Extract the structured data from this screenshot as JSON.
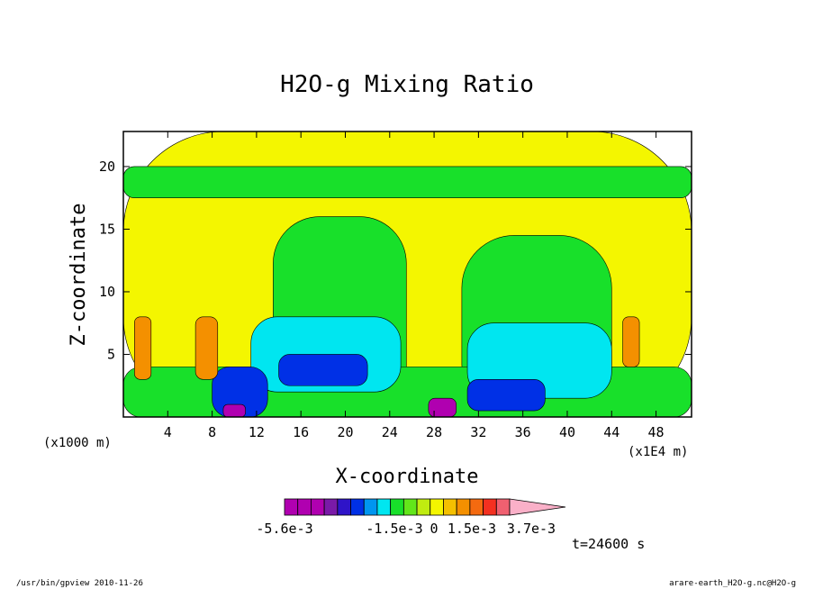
{
  "chart_data": {
    "type": "heatmap",
    "title": "H2O-g Mixing Ratio",
    "xlabel": "X-coordinate",
    "ylabel": "Z-coordinate",
    "x_unit_left": "(x1000 m)",
    "x_unit_right": "(x1E4 m)",
    "xlim": [
      0,
      51.2
    ],
    "ylim": [
      0,
      22.8
    ],
    "x_ticks": [
      4,
      8,
      12,
      16,
      20,
      24,
      28,
      32,
      36,
      40,
      44,
      48
    ],
    "x_tick_labels": [
      "4",
      "8",
      "12",
      "16",
      "20",
      "24",
      "28",
      "32",
      "36",
      "40",
      "44",
      "48"
    ],
    "y_ticks": [
      5,
      10,
      15,
      20
    ],
    "y_tick_labels": [
      "5",
      "10",
      "15",
      "20"
    ],
    "time_label": "t=24600 s",
    "colorbar": {
      "colors": [
        "#b000b0",
        "#b000b0",
        "#b000b0",
        "#7a1aa8",
        "#2f14c8",
        "#0030e6",
        "#0096f0",
        "#00e6f0",
        "#18e02a",
        "#62e61a",
        "#c0ec10",
        "#f4f600",
        "#f4c000",
        "#f49000",
        "#f46a10",
        "#f43020",
        "#f06070",
        "#fab0c8"
      ],
      "tick_labels": [
        "-5.6e-3",
        "-1.5e-3",
        "0",
        "1.5e-3",
        "3.7e-3"
      ]
    },
    "regions": [
      {
        "level": "yellow",
        "color": "#f4f600",
        "x0": 0,
        "x1": 51.2,
        "z0": 0,
        "z1": 22.8
      },
      {
        "level": "green",
        "color": "#18e02a",
        "x0": 13.5,
        "x1": 25.5,
        "z0": 0,
        "z1": 16
      },
      {
        "level": "green",
        "color": "#18e02a",
        "x0": 30.5,
        "x1": 44,
        "z0": 0,
        "z1": 14.5
      },
      {
        "level": "green",
        "color": "#18e02a",
        "x0": 0,
        "x1": 51.2,
        "z0": 17.5,
        "z1": 20
      },
      {
        "level": "green",
        "color": "#18e02a",
        "x0": 0,
        "x1": 51.2,
        "z0": 0,
        "z1": 4
      },
      {
        "level": "cyan",
        "color": "#00e6f0",
        "x0": 11.5,
        "x1": 25,
        "z0": 2,
        "z1": 8
      },
      {
        "level": "cyan",
        "color": "#00e6f0",
        "x0": 31,
        "x1": 44,
        "z0": 1.5,
        "z1": 7.5
      },
      {
        "level": "blue",
        "color": "#0030e6",
        "x0": 14,
        "x1": 22,
        "z0": 2.5,
        "z1": 5
      },
      {
        "level": "blue",
        "color": "#0030e6",
        "x0": 8,
        "x1": 13,
        "z0": 0,
        "z1": 4
      },
      {
        "level": "blue",
        "color": "#0030e6",
        "x0": 31,
        "x1": 38,
        "z0": 0.5,
        "z1": 3
      },
      {
        "level": "orange",
        "color": "#f49000",
        "x0": 1,
        "x1": 2.5,
        "z0": 3,
        "z1": 8
      },
      {
        "level": "orange",
        "color": "#f49000",
        "x0": 6.5,
        "x1": 8.5,
        "z0": 3,
        "z1": 8
      },
      {
        "level": "orange",
        "color": "#f49000",
        "x0": 45,
        "x1": 46.5,
        "z0": 4,
        "z1": 8
      },
      {
        "level": "purple",
        "color": "#b000b0",
        "x0": 27.5,
        "x1": 30,
        "z0": 0,
        "z1": 1.5
      },
      {
        "level": "purple",
        "color": "#b000b0",
        "x0": 9,
        "x1": 11,
        "z0": 0,
        "z1": 1
      }
    ]
  },
  "footer": {
    "left": "/usr/bin/gpview  2010-11-26",
    "right": "arare-earth_H2O-g.nc@H2O-g"
  }
}
